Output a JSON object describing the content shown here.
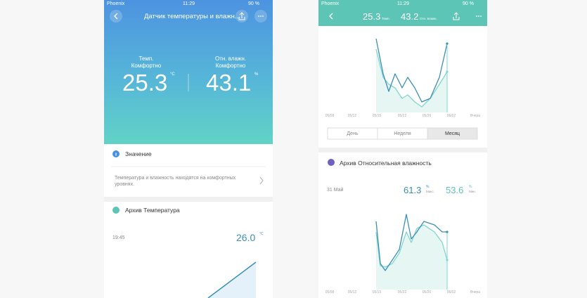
{
  "screens": [
    {
      "status": {
        "carrier": "Phoenix",
        "time": "11:29",
        "battery": "90 %"
      },
      "header": {
        "title": "Датчик температуры и влажн..."
      },
      "readings": [
        {
          "label": "Темп.",
          "state": "Комфортно",
          "value": "25.3",
          "unit": "°C"
        },
        {
          "label": "Отн. влажн.",
          "state": "Комфортно",
          "value": "43.1",
          "unit": "%"
        }
      ],
      "info": {
        "title": "Значение",
        "text": "Температура и влажность находятся на комфортных уровнях."
      },
      "archive": {
        "title": "Архив Температура",
        "time": "19:45",
        "value": "26.0",
        "unit": "°C"
      }
    },
    {
      "status": {
        "carrier": "Phoenix",
        "time": "11:29",
        "battery": "90 %"
      },
      "header": {
        "temp": "25.3",
        "temp_label": "Темп.",
        "hum": "43.2",
        "hum_label": "Отн. влажн."
      },
      "chart1_x": [
        "05/08",
        "05/12",
        "05/15",
        "05/22",
        "05/26",
        "06/02",
        "Вчера"
      ],
      "tabs": [
        "День",
        "Неделя",
        "Месяц"
      ],
      "archive": {
        "title": "Архив Относительная влажность",
        "date": "31 Май",
        "max": "61.3",
        "max_unit": "%",
        "max_label": "Макс.",
        "min": "53.6",
        "min_unit": "%",
        "min_label": "Мин."
      },
      "chart2_x": [
        "05/08",
        "05/12",
        "05/15",
        "05/22",
        "05/26",
        "06/02",
        "Вчера"
      ]
    }
  ]
}
